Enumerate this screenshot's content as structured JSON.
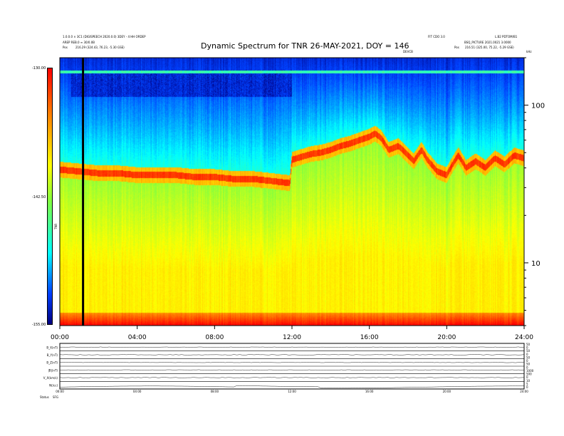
{
  "header": {
    "title": "Dynamic Spectrum for TNR 26-MAY-2021, DOY = 146",
    "left_line1": "1.0.0.0 × 3C1 (DIGISPEECH 2020.0.0) 3DEY - 4 HH ORDEP",
    "left_line2": "AREP REB.0 ≡ 30/0.0B",
    "left_pos_label": "Pos",
    "left_pos_value": "216.29 (324.43, 76.23, -5.30 GSE)",
    "right_line1a": "FIT CDO 3.0",
    "right_line1b": "L.B2 PDTOM/B1",
    "right_line2": "BSQ_PICTURE 2021.0021 3.0000",
    "right_pos_label": "Pos",
    "right_pos_value": "216.51 (325.00, 75.22, -5.29 GSE)",
    "devcb": "DEVCB",
    "corner": "kHz"
  },
  "colorbar": {
    "top_label": "-130.00",
    "mid_label": "-142.50",
    "bottom_label": "-155.00",
    "unit_label": "TNR"
  },
  "chart_data": [
    {
      "type": "heatmap",
      "title": "Dynamic Spectrum for TNR 26-MAY-2021, DOY = 146",
      "x_ticks": [
        "00:00",
        "04:00",
        "08:00",
        "12:00",
        "16:00",
        "20:00",
        "24:00"
      ],
      "x_range_hours": [
        0,
        24
      ],
      "y_scale": "log",
      "y_ticks": [
        {
          "value": 100,
          "label": "100"
        },
        {
          "value": 10,
          "label": "10"
        }
      ],
      "y_range_khz": [
        4,
        200
      ],
      "color_range_db": [
        -155.0,
        -130.0
      ],
      "plasma_line_khz": [
        [
          0.0,
          39
        ],
        [
          1.0,
          38
        ],
        [
          2.0,
          37
        ],
        [
          3.0,
          37
        ],
        [
          4.0,
          36
        ],
        [
          5.0,
          36
        ],
        [
          6.0,
          36
        ],
        [
          7.0,
          35
        ],
        [
          8.0,
          35
        ],
        [
          9.0,
          34
        ],
        [
          10.0,
          34
        ],
        [
          11.0,
          33
        ],
        [
          11.9,
          32
        ],
        [
          12.0,
          45
        ],
        [
          12.5,
          47
        ],
        [
          13.0,
          49
        ],
        [
          13.5,
          50
        ],
        [
          14.0,
          52
        ],
        [
          14.5,
          55
        ],
        [
          15.0,
          57
        ],
        [
          15.5,
          60
        ],
        [
          16.0,
          63
        ],
        [
          16.3,
          66
        ],
        [
          16.6,
          62
        ],
        [
          17.0,
          52
        ],
        [
          17.5,
          55
        ],
        [
          18.0,
          48
        ],
        [
          18.3,
          44
        ],
        [
          18.7,
          52
        ],
        [
          19.0,
          45
        ],
        [
          19.5,
          38
        ],
        [
          20.0,
          36
        ],
        [
          20.3,
          42
        ],
        [
          20.6,
          48
        ],
        [
          21.0,
          40
        ],
        [
          21.5,
          44
        ],
        [
          22.0,
          40
        ],
        [
          22.5,
          46
        ],
        [
          23.0,
          42
        ],
        [
          23.5,
          48
        ],
        [
          24.0,
          46
        ]
      ],
      "black_line_hour": 1.2
    }
  ],
  "stack": {
    "panel_labels": [
      "B_X(nT)",
      "B_Y(nT)",
      "B_Z(nT)",
      "|B|(nT)",
      "V_X(km/s)",
      "N(/cc)"
    ],
    "right_labels": [
      "50",
      "0",
      "50",
      "0",
      "50",
      "0",
      "50",
      "0",
      "1000",
      "500",
      "0",
      "10",
      "5",
      "0"
    ],
    "x_ticks": [
      "00:00",
      "04:00",
      "08:00",
      "12:00",
      "16:00",
      "20:00",
      "24:00"
    ],
    "status_label": "Status",
    "status_value": "SFG"
  }
}
